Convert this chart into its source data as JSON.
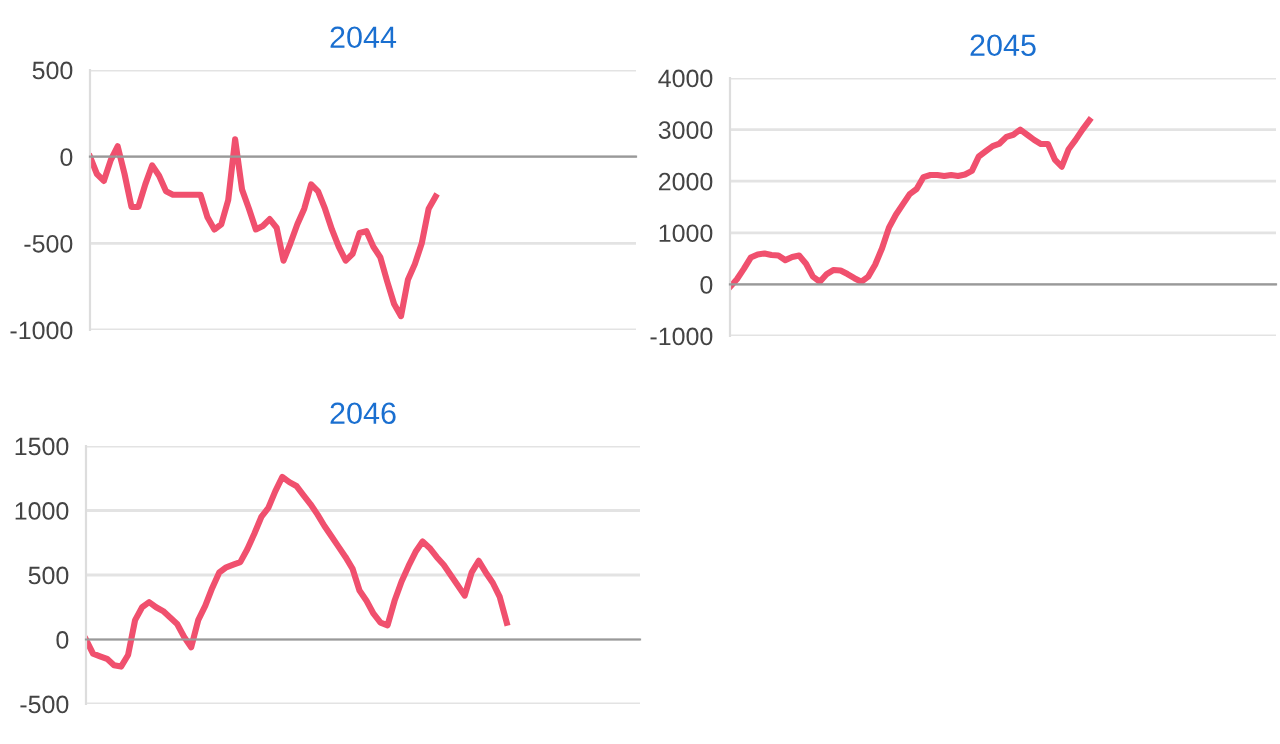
{
  "chart_data": [
    {
      "type": "line",
      "title": "2044",
      "categories": [
        null,
        null,
        null,
        null,
        null,
        null,
        null,
        null,
        null,
        null,
        null,
        null,
        null,
        null,
        null,
        null,
        null,
        null,
        null,
        null,
        null,
        null,
        null,
        null,
        null,
        null,
        null,
        null,
        null,
        null,
        null,
        null,
        null,
        null,
        null,
        null,
        null,
        null,
        null,
        null,
        null,
        null,
        null,
        null,
        null,
        null,
        null,
        null,
        null,
        null,
        null,
        null,
        null,
        null,
        null,
        null,
        null,
        null,
        null,
        null,
        null,
        null,
        null,
        null,
        null,
        null,
        null,
        null,
        null,
        null,
        null,
        null,
        null,
        null,
        null,
        null,
        null,
        null,
        null,
        null
      ],
      "series": [
        {
          "color": "#f0506e",
          "values": [
            0,
            -100,
            -140,
            -20,
            60,
            -100,
            -290,
            -290,
            -160,
            -50,
            -110,
            -200,
            -220,
            -220,
            -220,
            -220,
            -220,
            -350,
            -420,
            -390,
            -250,
            100,
            -190,
            -300,
            -420,
            -400,
            -360,
            -410,
            -600,
            -500,
            -390,
            -300,
            -160,
            -200,
            -300,
            -420,
            -520,
            -600,
            -560,
            -440,
            -430,
            -520,
            -580,
            -720,
            -850,
            -920,
            -710,
            -620,
            -500,
            -300,
            -230,
            null,
            null,
            null,
            null,
            null,
            null,
            null,
            null,
            null,
            null,
            null,
            null,
            null,
            null,
            null,
            null,
            null,
            null,
            null,
            null,
            null,
            null,
            null,
            null,
            null,
            null,
            null,
            null,
            null
          ]
        }
      ],
      "ylim": [
        -1000,
        500
      ],
      "yticks": [
        -1000,
        -500,
        0,
        500
      ],
      "grid": "y",
      "tick_labels": "y",
      "line_style": "solid",
      "marker": "none"
    },
    {
      "type": "line",
      "title": "2045",
      "categories": [
        null,
        null,
        null,
        null,
        null,
        null,
        null,
        null,
        null,
        null,
        null,
        null,
        null,
        null,
        null,
        null,
        null,
        null,
        null,
        null,
        null,
        null,
        null,
        null,
        null,
        null,
        null,
        null,
        null,
        null,
        null,
        null,
        null,
        null,
        null,
        null,
        null,
        null,
        null,
        null,
        null,
        null,
        null,
        null,
        null,
        null,
        null,
        null,
        null,
        null,
        null,
        null,
        null,
        null,
        null,
        null,
        null,
        null,
        null,
        null,
        null,
        null,
        null,
        null,
        null,
        null,
        null,
        null,
        null,
        null,
        null,
        null,
        null,
        null,
        null,
        null,
        null,
        null,
        null,
        null
      ],
      "series": [
        {
          "color": "#f0506e",
          "values": [
            -50,
            100,
            300,
            520,
            580,
            600,
            570,
            560,
            470,
            530,
            560,
            400,
            150,
            50,
            200,
            280,
            270,
            200,
            120,
            50,
            150,
            380,
            700,
            1100,
            1350,
            1550,
            1750,
            1850,
            2080,
            2120,
            2120,
            2100,
            2120,
            2100,
            2130,
            2200,
            2480,
            2580,
            2680,
            2730,
            2860,
            2900,
            3000,
            2900,
            2800,
            2720,
            2720,
            2420,
            2280,
            2620,
            2800,
            3000,
            3180,
            null,
            null,
            null,
            null,
            null,
            null,
            null,
            null,
            null,
            null,
            null,
            null,
            null,
            null,
            null,
            null,
            null,
            null,
            null,
            null,
            null,
            null,
            null,
            null,
            null,
            null,
            null
          ]
        }
      ],
      "ylim": [
        -1000,
        4000
      ],
      "yticks": [
        -1000,
        0,
        1000,
        2000,
        3000,
        4000
      ],
      "grid": "y",
      "tick_labels": "y",
      "line_style": "solid",
      "marker": "none"
    },
    {
      "type": "line",
      "title": "2046",
      "categories": [
        null,
        null,
        null,
        null,
        null,
        null,
        null,
        null,
        null,
        null,
        null,
        null,
        null,
        null,
        null,
        null,
        null,
        null,
        null,
        null,
        null,
        null,
        null,
        null,
        null,
        null,
        null,
        null,
        null,
        null,
        null,
        null,
        null,
        null,
        null,
        null,
        null,
        null,
        null,
        null,
        null,
        null,
        null,
        null,
        null,
        null,
        null,
        null,
        null,
        null,
        null,
        null,
        null,
        null,
        null,
        null,
        null,
        null,
        null,
        null,
        null,
        null,
        null,
        null,
        null,
        null,
        null,
        null,
        null,
        null,
        null,
        null,
        null,
        null,
        null,
        null,
        null,
        null,
        null,
        null
      ],
      "series": [
        {
          "color": "#f0506e",
          "values": [
            0,
            -110,
            -130,
            -150,
            -200,
            -210,
            -120,
            150,
            250,
            290,
            250,
            220,
            170,
            120,
            20,
            -60,
            150,
            260,
            400,
            520,
            560,
            580,
            600,
            700,
            820,
            950,
            1020,
            1150,
            1260,
            1220,
            1190,
            1120,
            1050,
            970,
            880,
            800,
            720,
            640,
            550,
            380,
            300,
            200,
            130,
            110,
            300,
            450,
            570,
            680,
            760,
            710,
            640,
            580,
            500,
            420,
            340,
            520,
            610,
            520,
            440,
            330,
            130,
            null,
            null,
            null,
            null,
            null,
            null,
            null,
            null,
            null,
            null,
            null,
            null,
            null,
            null,
            null,
            null,
            null,
            null,
            null
          ]
        }
      ],
      "ylim": [
        -500,
        1500
      ],
      "yticks": [
        -500,
        0,
        500,
        1000,
        1500
      ],
      "grid": "y",
      "tick_labels": "y",
      "line_style": "solid",
      "marker": "none"
    }
  ]
}
